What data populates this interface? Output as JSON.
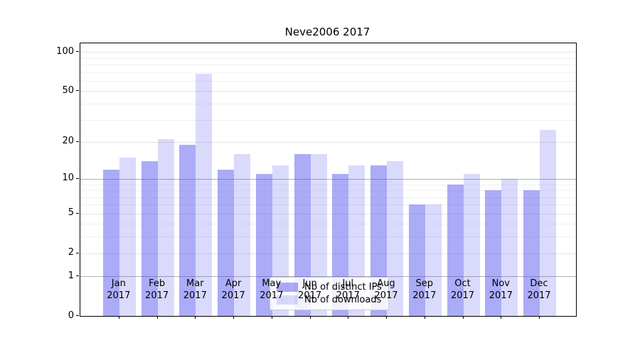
{
  "title": "Neve2006 2017",
  "colors": {
    "bar_base": "#4444ee",
    "series1_fill": "rgba(68,68,238,0.45)",
    "series2_fill": "rgba(68,68,238,0.2)",
    "grid_major": "#b0b0b0",
    "grid_labeled": "#e5e5e5",
    "grid_minor": "#f0f0f0",
    "axis": "#000000"
  },
  "chart_data": {
    "type": "bar",
    "title": "Neve2006 2017",
    "categories": [
      "Jan 2017",
      "Feb 2017",
      "Mar 2017",
      "Apr 2017",
      "May 2017",
      "Jun 2017",
      "Jul 2017",
      "Aug 2017",
      "Sep 2017",
      "Oct 2017",
      "Nov 2017",
      "Dec 2017"
    ],
    "month_labels": [
      "Jan",
      "Feb",
      "Mar",
      "Apr",
      "May",
      "Jun",
      "Jul",
      "Aug",
      "Sep",
      "Oct",
      "Nov",
      "Dec"
    ],
    "year_label": "2017",
    "series": [
      {
        "name": "Nb of distinct IPs",
        "values": [
          12,
          14,
          19,
          12,
          11,
          16,
          11,
          13,
          6,
          9,
          8,
          8
        ]
      },
      {
        "name": "Nb of downloads",
        "values": [
          15,
          21,
          68,
          16,
          13,
          16,
          13,
          14,
          6,
          11,
          10,
          25
        ]
      }
    ],
    "yscale": "log10(1+v)",
    "ylim": [
      0,
      101
    ],
    "y_ticks": [
      0,
      1,
      2,
      5,
      10,
      20,
      50,
      100
    ],
    "y_major_grid_values": [
      1,
      10
    ],
    "y_minor_grid_values": [
      2,
      3,
      4,
      5,
      6,
      7,
      8,
      9,
      20,
      30,
      40,
      50,
      60,
      70,
      80,
      90,
      100
    ],
    "grid": true,
    "legend_position": "lower center"
  }
}
